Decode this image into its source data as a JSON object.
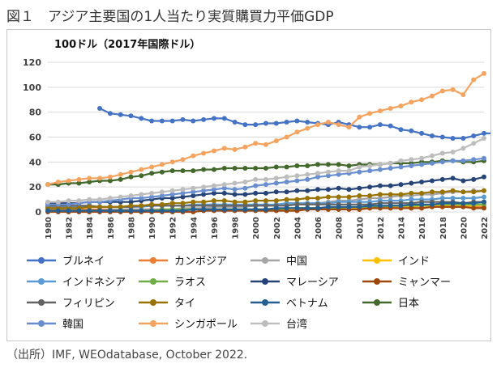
{
  "figure_title": "図１　アジア主要国の1人当たり実質購買力平価GDP",
  "source": "（出所）IMF, WEOdatabase, October 2022.",
  "chart_data": {
    "type": "line",
    "title": "",
    "unit_label": "100ドル（2017年国際ドル）",
    "xlabel": "",
    "ylabel": "",
    "ylim": [
      0,
      120
    ],
    "yticks": [
      0,
      20,
      40,
      60,
      80,
      100,
      120
    ],
    "xlim": [
      1980,
      2022
    ],
    "xticks": [
      "1980",
      "1982",
      "1984",
      "1986",
      "1988",
      "1990",
      "1992",
      "1994",
      "1996",
      "1998",
      "2000",
      "2002",
      "2004",
      "2006",
      "2008",
      "2010",
      "2012",
      "2014",
      "2016",
      "2018",
      "2020",
      "2022"
    ],
    "grid": true,
    "legend_position": "bottom",
    "legend_columns": 4,
    "series": [
      {
        "name": "ブルネイ",
        "color": "#4472C4",
        "start": 1985,
        "values": [
          83,
          79,
          78,
          77,
          75,
          73,
          73,
          73,
          74,
          73,
          74,
          75,
          75,
          72,
          70,
          70,
          71,
          71,
          72,
          73,
          72,
          71,
          70,
          72,
          70,
          68,
          68,
          70,
          69,
          66,
          65,
          63,
          61,
          60,
          59,
          59,
          61,
          63,
          63
        ]
      },
      {
        "name": "カンボジア",
        "color": "#ED7D31",
        "start": 1980,
        "values": [
          2,
          2,
          2,
          2,
          2,
          2,
          2,
          2,
          2,
          2,
          2,
          2,
          2,
          2,
          2,
          2,
          2,
          2,
          2,
          2,
          2,
          2,
          2,
          2,
          2,
          2,
          2,
          2,
          2,
          2,
          2,
          3,
          3,
          3,
          3,
          3,
          3,
          4,
          4,
          4,
          4,
          4,
          4
        ]
      },
      {
        "name": "中国",
        "color": "#A5A5A5",
        "start": 1980,
        "values": [
          1,
          1,
          1,
          1,
          1,
          1,
          2,
          2,
          2,
          2,
          2,
          2,
          2,
          3,
          3,
          3,
          4,
          4,
          4,
          4,
          5,
          5,
          5,
          6,
          6,
          7,
          7,
          8,
          9,
          9,
          10,
          11,
          11,
          12,
          13,
          13,
          14,
          14,
          15,
          16,
          16,
          17,
          17
        ]
      },
      {
        "name": "インド",
        "color": "#FFC000",
        "start": 1980,
        "values": [
          1,
          1,
          1,
          1,
          1,
          1,
          1,
          1,
          1,
          1,
          1,
          2,
          2,
          2,
          2,
          2,
          2,
          2,
          2,
          2,
          2,
          2,
          2,
          2,
          3,
          3,
          3,
          3,
          3,
          3,
          3,
          4,
          4,
          4,
          4,
          4,
          5,
          5,
          5,
          5,
          5,
          5,
          6
        ]
      },
      {
        "name": "インドネシア",
        "color": "#5B9BD5",
        "start": 1980,
        "values": [
          4,
          4,
          4,
          4,
          4,
          4,
          4,
          4,
          4,
          4,
          5,
          5,
          5,
          5,
          6,
          6,
          6,
          6,
          6,
          6,
          6,
          6,
          6,
          7,
          7,
          7,
          7,
          7,
          8,
          8,
          8,
          8,
          9,
          9,
          9,
          10,
          10,
          10,
          11,
          11,
          11,
          11,
          12
        ]
      },
      {
        "name": "ラオス",
        "color": "#70AD47",
        "start": 1980,
        "values": [
          1,
          1,
          1,
          1,
          1,
          1,
          1,
          1,
          1,
          1,
          1,
          2,
          2,
          2,
          2,
          2,
          2,
          2,
          2,
          2,
          2,
          2,
          2,
          3,
          3,
          3,
          3,
          3,
          3,
          4,
          4,
          4,
          4,
          5,
          5,
          5,
          5,
          6,
          6,
          6,
          6,
          6,
          6
        ]
      },
      {
        "name": "マレーシア",
        "color": "#264478",
        "start": 1980,
        "values": [
          7,
          7,
          7,
          7,
          8,
          8,
          8,
          8,
          8,
          9,
          10,
          11,
          11,
          12,
          13,
          14,
          15,
          15,
          14,
          14,
          15,
          15,
          16,
          16,
          17,
          17,
          18,
          18,
          19,
          18,
          19,
          20,
          21,
          21,
          22,
          23,
          24,
          25,
          26,
          27,
          25,
          26,
          28
        ]
      },
      {
        "name": "ミャンマー",
        "color": "#9E480E",
        "start": 1980,
        "values": [
          0,
          0,
          0,
          0,
          0,
          0,
          0,
          0,
          0,
          0,
          0,
          0,
          0,
          0,
          0,
          1,
          1,
          1,
          1,
          1,
          1,
          1,
          1,
          1,
          1,
          2,
          2,
          2,
          2,
          2,
          2,
          3,
          3,
          3,
          3,
          3,
          3,
          4,
          4,
          4,
          4,
          3,
          3
        ]
      },
      {
        "name": "フィリピン",
        "color": "#636363",
        "start": 1980,
        "values": [
          5,
          5,
          5,
          5,
          5,
          4,
          4,
          4,
          4,
          5,
          5,
          5,
          5,
          5,
          5,
          5,
          5,
          5,
          5,
          5,
          5,
          5,
          5,
          5,
          6,
          6,
          6,
          6,
          6,
          6,
          6,
          6,
          7,
          7,
          7,
          7,
          8,
          8,
          8,
          8,
          7,
          8,
          8
        ]
      },
      {
        "name": "タイ",
        "color": "#997300",
        "start": 1980,
        "values": [
          3,
          3,
          3,
          3,
          4,
          4,
          4,
          4,
          5,
          5,
          6,
          6,
          7,
          7,
          8,
          8,
          9,
          9,
          8,
          8,
          9,
          9,
          9,
          10,
          10,
          11,
          11,
          12,
          12,
          12,
          13,
          13,
          14,
          14,
          14,
          15,
          15,
          16,
          16,
          17,
          16,
          16,
          17
        ]
      },
      {
        "name": "ベトナム",
        "color": "#255E91",
        "start": 1980,
        "values": [
          1,
          1,
          1,
          1,
          1,
          1,
          1,
          1,
          1,
          1,
          1,
          1,
          1,
          1,
          2,
          2,
          2,
          2,
          2,
          2,
          2,
          2,
          3,
          3,
          3,
          3,
          3,
          4,
          4,
          4,
          4,
          5,
          5,
          5,
          5,
          6,
          6,
          6,
          7,
          7,
          7,
          7,
          8
        ]
      },
      {
        "name": "日本",
        "color": "#43682B",
        "start": 1980,
        "values": [
          22,
          22,
          23,
          23,
          24,
          25,
          25,
          26,
          28,
          29,
          31,
          32,
          33,
          33,
          33,
          34,
          34,
          35,
          35,
          35,
          35,
          35,
          36,
          36,
          37,
          37,
          38,
          38,
          38,
          37,
          38,
          38,
          38,
          39,
          39,
          39,
          40,
          40,
          41,
          41,
          40,
          40,
          41
        ]
      },
      {
        "name": "韓国",
        "color": "#698ED0",
        "start": 1980,
        "values": [
          6,
          6,
          6,
          7,
          8,
          8,
          9,
          10,
          11,
          11,
          12,
          13,
          14,
          15,
          16,
          17,
          18,
          19,
          18,
          19,
          21,
          22,
          23,
          24,
          25,
          26,
          28,
          29,
          30,
          31,
          32,
          33,
          34,
          35,
          36,
          37,
          38,
          39,
          40,
          41,
          41,
          42,
          43
        ]
      },
      {
        "name": "シンガポール",
        "color": "#F4A460",
        "start": 1980,
        "values": [
          22,
          24,
          25,
          26,
          27,
          27,
          28,
          30,
          32,
          34,
          36,
          38,
          40,
          42,
          45,
          47,
          49,
          51,
          50,
          52,
          55,
          54,
          57,
          60,
          64,
          67,
          70,
          72,
          70,
          68,
          76,
          79,
          81,
          83,
          85,
          88,
          90,
          93,
          97,
          98,
          94,
          106,
          111
        ]
      },
      {
        "name": "台湾",
        "color": "#BDBDBD",
        "start": 1980,
        "values": [
          8,
          8,
          9,
          9,
          10,
          10,
          11,
          12,
          13,
          14,
          15,
          16,
          17,
          18,
          19,
          20,
          21,
          22,
          23,
          24,
          26,
          26,
          27,
          28,
          29,
          30,
          31,
          32,
          33,
          33,
          36,
          37,
          38,
          39,
          41,
          42,
          43,
          45,
          47,
          48,
          51,
          55,
          59
        ]
      }
    ]
  }
}
